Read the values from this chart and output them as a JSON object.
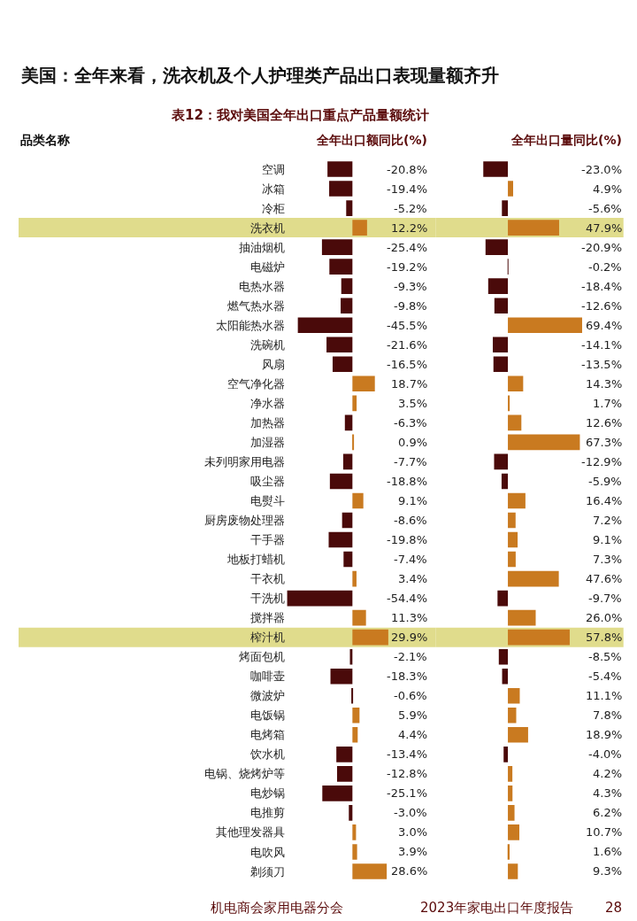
{
  "chart_data": [
    {
      "type": "bar",
      "orientation": "horizontal",
      "title": "美国：全年来看，洗衣机及个人护理类产品出口表现量额齐升",
      "subtitle": "表12：我对美国全年出口重点产品量额统计",
      "xlabel": "全年出口额同比(%)",
      "categories": [
        "空调",
        "冰箱",
        "冷柜",
        "洗衣机",
        "抽油烟机",
        "电磁炉",
        "电热水器",
        "燃气热水器",
        "太阳能热水器",
        "洗碗机",
        "风扇",
        "空气净化器",
        "净水器",
        "加热器",
        "加湿器",
        "未列明家用电器",
        "吸尘器",
        "电熨斗",
        "厨房废物处理器",
        "干手器",
        "地板打蜡机",
        "干衣机",
        "干洗机",
        "搅拌器",
        "榨汁机",
        "烤面包机",
        "咖啡壶",
        "微波炉",
        "电饭锅",
        "电烤箱",
        "饮水机",
        "电锅、烧烤炉等",
        "电炒锅",
        "电推剪",
        "其他理发器具",
        "电吹风",
        "剃须刀"
      ],
      "series": [
        {
          "values": [
            -20.8,
            -19.4,
            -5.2,
            12.2,
            -25.4,
            -19.2,
            -9.3,
            -9.8,
            -45.5,
            -21.6,
            -16.5,
            18.7,
            3.5,
            -6.3,
            0.9,
            -7.7,
            -18.8,
            9.1,
            -8.6,
            -19.8,
            -7.4,
            3.4,
            -54.4,
            11.3,
            29.9,
            -2.1,
            -18.3,
            -0.6,
            5.9,
            4.4,
            -13.4,
            -12.8,
            -25.1,
            -3.0,
            3.0,
            3.9,
            28.6
          ],
          "colors": [
            "#4a0a0a",
            "#4a0a0a",
            "#4a0a0a",
            "#c97a20",
            "#4a0a0a",
            "#4a0a0a",
            "#4a0a0a",
            "#4a0a0a",
            "#4a0a0a",
            "#4a0a0a",
            "#4a0a0a",
            "#c97a20",
            "#c97a20",
            "#4a0a0a",
            "#c97a20",
            "#4a0a0a",
            "#4a0a0a",
            "#c97a20",
            "#4a0a0a",
            "#4a0a0a",
            "#4a0a0a",
            "#c97a20",
            "#4a0a0a",
            "#c97a20",
            "#c97a20",
            "#4a0a0a",
            "#4a0a0a",
            "#4a0a0a",
            "#c97a20",
            "#c97a20",
            "#4a0a0a",
            "#4a0a0a",
            "#4a0a0a",
            "#4a0a0a",
            "#c97a20",
            "#c97a20",
            "#c97a20"
          ],
          "value_labels": [
            "-20.8%",
            "-19.4%",
            "-5.2%",
            "12.2%",
            "-25.4%",
            "-19.2%",
            "-9.3%",
            "-9.8%",
            "-45.5%",
            "-21.6%",
            "-16.5%",
            "18.7%",
            "3.5%",
            "-6.3%",
            "0.9%",
            "-7.7%",
            "-18.8%",
            "9.1%",
            "-8.6%",
            "-19.8%",
            "-7.4%",
            "3.4%",
            "-54.4%",
            "11.3%",
            "29.9%",
            "-2.1%",
            "-18.3%",
            "-0.6%",
            "5.9%",
            "4.4%",
            "-13.4%",
            "-12.8%",
            "-25.1%",
            "-3.0%",
            "3.0%",
            "3.9%",
            "28.6%"
          ]
        }
      ],
      "bands": [
        {
          "axis": "y",
          "from": "洗衣机",
          "to": "洗衣机",
          "color": "#e0dc8c"
        },
        {
          "axis": "y",
          "from": "榨汁机",
          "to": "榨汁机",
          "color": "#e0dc8c"
        }
      ],
      "annotations": [
        "品类名称",
        "机电商会家用电器分会",
        "2023年家电出口年度报告",
        "28"
      ],
      "grid": false,
      "legend": false,
      "tick_labels": "y"
    },
    {
      "type": "bar",
      "orientation": "horizontal",
      "xlabel": "全年出口量同比(%)",
      "categories": [
        "空调",
        "冰箱",
        "冷柜",
        "洗衣机",
        "抽油烟机",
        "电磁炉",
        "电热水器",
        "燃气热水器",
        "太阳能热水器",
        "洗碗机",
        "风扇",
        "空气净化器",
        "净水器",
        "加热器",
        "加湿器",
        "未列明家用电器",
        "吸尘器",
        "电熨斗",
        "厨房废物处理器",
        "干手器",
        "地板打蜡机",
        "干衣机",
        "干洗机",
        "搅拌器",
        "榨汁机",
        "烤面包机",
        "咖啡壶",
        "微波炉",
        "电饭锅",
        "电烤箱",
        "饮水机",
        "电锅、烧烤炉等",
        "电炒锅",
        "电推剪",
        "其他理发器具",
        "电吹风",
        "剃须刀"
      ],
      "series": [
        {
          "values": [
            -23.0,
            4.9,
            -5.6,
            47.9,
            -20.9,
            -0.2,
            -18.4,
            -12.6,
            69.4,
            -14.1,
            -13.5,
            14.3,
            1.7,
            12.6,
            67.3,
            -12.9,
            -5.9,
            16.4,
            7.2,
            9.1,
            7.3,
            47.6,
            -9.7,
            26.0,
            57.8,
            -8.5,
            -5.4,
            11.1,
            7.8,
            18.9,
            -4.0,
            4.2,
            4.3,
            6.2,
            10.7,
            1.6,
            9.3
          ],
          "colors": [
            "#4a0a0a",
            "#c97a20",
            "#4a0a0a",
            "#c97a20",
            "#4a0a0a",
            "#4a0a0a",
            "#4a0a0a",
            "#4a0a0a",
            "#c97a20",
            "#4a0a0a",
            "#4a0a0a",
            "#c97a20",
            "#c97a20",
            "#c97a20",
            "#c97a20",
            "#4a0a0a",
            "#4a0a0a",
            "#c97a20",
            "#c97a20",
            "#c97a20",
            "#c97a20",
            "#c97a20",
            "#4a0a0a",
            "#c97a20",
            "#c97a20",
            "#4a0a0a",
            "#4a0a0a",
            "#c97a20",
            "#c97a20",
            "#c97a20",
            "#4a0a0a",
            "#c97a20",
            "#c97a20",
            "#c97a20",
            "#c97a20",
            "#c97a20",
            "#c97a20"
          ],
          "value_labels": [
            "-23.0%",
            "4.9%",
            "-5.6%",
            "47.9%",
            "-20.9%",
            "-0.2%",
            "-18.4%",
            "-12.6%",
            "69.4%",
            "-14.1%",
            "-13.5%",
            "14.3%",
            "1.7%",
            "12.6%",
            "67.3%",
            "-12.9%",
            "-5.9%",
            "16.4%",
            "7.2%",
            "9.1%",
            "7.3%",
            "47.6%",
            "-9.7%",
            "26.0%",
            "57.8%",
            "-8.5%",
            "-5.4%",
            "11.1%",
            "7.8%",
            "18.9%",
            "-4.0%",
            "4.2%",
            "4.3%",
            "6.2%",
            "10.7%",
            "1.6%",
            "9.3%"
          ]
        }
      ],
      "bands": [
        {
          "axis": "y",
          "from": "洗衣机",
          "to": "洗衣机",
          "color": "#e0dc8c"
        },
        {
          "axis": "y",
          "from": "榨汁机",
          "to": "榨汁机",
          "color": "#e0dc8c"
        }
      ],
      "grid": false,
      "legend": false,
      "tick_labels": false
    }
  ]
}
